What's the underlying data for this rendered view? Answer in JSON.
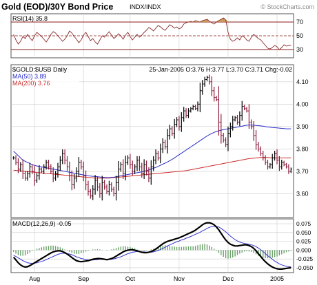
{
  "header": {
    "title": "Gold (EOD)/30Y Bond Price",
    "symbol": "INDX/INDX",
    "copyright": "© StockCharts.com"
  },
  "colors": {
    "frame": "#555555",
    "grid": "#cccccc",
    "rsi_line": "#8b2a2a",
    "rsi_fill": "#c79a5a",
    "rsi_levels": "#8b1a1a",
    "up_bar": "#000000",
    "down_bar": "#8b1a3a",
    "ma50": "#2b2bcc",
    "ma200": "#cc2b2b",
    "macd_line": "#000000",
    "macd_signal": "#3333cc",
    "histogram": "#6aa06a"
  },
  "chart_data": [
    {
      "panel": "rsi",
      "type": "line",
      "title": "RSI(14) 35.8",
      "ylim": [
        20,
        80
      ],
      "overbought": 70,
      "oversold": 30,
      "midline": 50,
      "ticks": [
        "70",
        "50",
        "30"
      ],
      "tick_values": [
        70,
        50,
        30
      ],
      "values": [
        52,
        44,
        38,
        42,
        49,
        46,
        52,
        47,
        43,
        50,
        55,
        52,
        49,
        45,
        41,
        46,
        52,
        56,
        54,
        50,
        46,
        42,
        45,
        50,
        57,
        54,
        49,
        45,
        40,
        44,
        51,
        55,
        49,
        43,
        46,
        41,
        38,
        44,
        50,
        48,
        52,
        56,
        51,
        46,
        49,
        53,
        50,
        45,
        51,
        55,
        49,
        44,
        48,
        52,
        48,
        51,
        55,
        58,
        62,
        60,
        57,
        61,
        65,
        63,
        60,
        58,
        62,
        66,
        64,
        61,
        63,
        60,
        62,
        67,
        69,
        70,
        71,
        70,
        72,
        71,
        70,
        72,
        73,
        74,
        71,
        69,
        67,
        70,
        72,
        74,
        76,
        73,
        55,
        45,
        42,
        44,
        47,
        44,
        50,
        48,
        44,
        42,
        48,
        52,
        49,
        46,
        44,
        40,
        36,
        32,
        31,
        33,
        36,
        34,
        30,
        33,
        37,
        35,
        36,
        35.8
      ]
    },
    {
      "panel": "price",
      "type": "ohlc",
      "legend_title": "$GOLD:$USB Daily",
      "info": "25-Jan-2005 O:3.76 H:3.77 L:3.70 C:3.71 Chg:-0.02",
      "ma50_label": "MA(50) 3.89",
      "ma200_label": "MA(200) 3.76",
      "ylim": [
        3.5,
        4.17
      ],
      "ticks": [
        "4.10",
        "4.00",
        "3.90",
        "3.80",
        "3.70",
        "3.60"
      ],
      "tick_values": [
        4.1,
        4.0,
        3.9,
        3.8,
        3.7,
        3.6
      ],
      "closes": [
        3.76,
        3.74,
        3.71,
        3.73,
        3.69,
        3.67,
        3.69,
        3.72,
        3.7,
        3.66,
        3.68,
        3.71,
        3.7,
        3.72,
        3.74,
        3.72,
        3.7,
        3.67,
        3.69,
        3.72,
        3.75,
        3.78,
        3.75,
        3.72,
        3.68,
        3.64,
        3.67,
        3.7,
        3.74,
        3.72,
        3.68,
        3.64,
        3.61,
        3.59,
        3.62,
        3.66,
        3.63,
        3.6,
        3.65,
        3.63,
        3.61,
        3.64,
        3.62,
        3.6,
        3.65,
        3.71,
        3.73,
        3.69,
        3.74,
        3.76,
        3.73,
        3.7,
        3.72,
        3.75,
        3.72,
        3.69,
        3.73,
        3.7,
        3.67,
        3.72,
        3.75,
        3.78,
        3.76,
        3.8,
        3.83,
        3.81,
        3.86,
        3.89,
        3.87,
        3.91,
        3.93,
        3.9,
        3.94,
        3.97,
        3.95,
        3.97,
        3.98,
        3.99,
        3.98,
        4.0,
        4.06,
        4.09,
        4.11,
        4.12,
        4.1,
        4.06,
        4.03,
        4.02,
        3.92,
        3.86,
        3.84,
        3.82,
        3.87,
        3.9,
        3.93,
        3.94,
        3.92,
        3.95,
        3.99,
        3.98,
        3.97,
        3.92,
        3.9,
        3.86,
        3.82,
        3.8,
        3.78,
        3.76,
        3.74,
        3.72,
        3.73,
        3.76,
        3.78,
        3.75,
        3.72,
        3.74,
        3.73,
        3.72,
        3.7,
        3.71
      ],
      "ma50": [
        3.79,
        3.78,
        3.77,
        3.76,
        3.75,
        3.745,
        3.74,
        3.735,
        3.73,
        3.727,
        3.724,
        3.722,
        3.72,
        3.718,
        3.716,
        3.714,
        3.712,
        3.71,
        3.708,
        3.706,
        3.704,
        3.702,
        3.7,
        3.698,
        3.696,
        3.694,
        3.692,
        3.69,
        3.688,
        3.686,
        3.684,
        3.682,
        3.68,
        3.679,
        3.678,
        3.677,
        3.676,
        3.675,
        3.674,
        3.673,
        3.672,
        3.672,
        3.673,
        3.674,
        3.676,
        3.678,
        3.68,
        3.682,
        3.684,
        3.686,
        3.688,
        3.69,
        3.692,
        3.694,
        3.696,
        3.698,
        3.7,
        3.703,
        3.706,
        3.71,
        3.714,
        3.718,
        3.722,
        3.727,
        3.732,
        3.737,
        3.742,
        3.748,
        3.754,
        3.76,
        3.767,
        3.774,
        3.781,
        3.788,
        3.795,
        3.802,
        3.809,
        3.816,
        3.823,
        3.83,
        3.837,
        3.844,
        3.851,
        3.858,
        3.864,
        3.869,
        3.874,
        3.878,
        3.881,
        3.884,
        3.886,
        3.888,
        3.89,
        3.892,
        3.894,
        3.896,
        3.898,
        3.9,
        3.902,
        3.904,
        3.906,
        3.907,
        3.907,
        3.906,
        3.905,
        3.904,
        3.903,
        3.902,
        3.9,
        3.898,
        3.897,
        3.896,
        3.895,
        3.894,
        3.893,
        3.892,
        3.891,
        3.89,
        3.89,
        3.89
      ],
      "ma200": [
        3.705,
        3.704,
        3.703,
        3.702,
        3.701,
        3.7,
        3.699,
        3.698,
        3.697,
        3.696,
        3.695,
        3.694,
        3.693,
        3.692,
        3.691,
        3.69,
        3.689,
        3.688,
        3.687,
        3.686,
        3.685,
        3.684,
        3.683,
        3.682,
        3.681,
        3.68,
        3.679,
        3.678,
        3.677,
        3.676,
        3.675,
        3.674,
        3.673,
        3.672,
        3.671,
        3.67,
        3.67,
        3.67,
        3.67,
        3.67,
        3.67,
        3.67,
        3.671,
        3.672,
        3.673,
        3.674,
        3.675,
        3.676,
        3.677,
        3.678,
        3.679,
        3.68,
        3.681,
        3.682,
        3.683,
        3.684,
        3.685,
        3.686,
        3.687,
        3.688,
        3.689,
        3.69,
        3.691,
        3.692,
        3.693,
        3.694,
        3.695,
        3.696,
        3.697,
        3.698,
        3.699,
        3.7,
        3.701,
        3.702,
        3.703,
        3.705,
        3.707,
        3.709,
        3.711,
        3.713,
        3.715,
        3.717,
        3.719,
        3.721,
        3.723,
        3.725,
        3.727,
        3.729,
        3.731,
        3.733,
        3.735,
        3.737,
        3.739,
        3.741,
        3.743,
        3.745,
        3.747,
        3.749,
        3.751,
        3.753,
        3.755,
        3.757,
        3.758,
        3.759,
        3.76,
        3.761,
        3.762,
        3.762,
        3.762,
        3.762,
        3.761,
        3.761,
        3.76,
        3.76,
        3.76,
        3.76,
        3.76,
        3.76,
        3.76,
        3.76
      ]
    },
    {
      "panel": "macd",
      "type": "line",
      "title": "MACD(12,26,9) -0.05",
      "ylim": [
        -0.06,
        0.085
      ],
      "ticks": [
        "0.075",
        "0.050",
        "0.025",
        "0.000",
        "-0.025",
        "-0.050"
      ],
      "tick_values": [
        0.075,
        0.05,
        0.025,
        0.0,
        -0.025,
        -0.05
      ],
      "macd": [
        -0.02,
        -0.028,
        -0.036,
        -0.042,
        -0.046,
        -0.048,
        -0.047,
        -0.044,
        -0.04,
        -0.036,
        -0.032,
        -0.028,
        -0.024,
        -0.02,
        -0.016,
        -0.012,
        -0.008,
        -0.005,
        -0.003,
        -0.002,
        -0.002,
        -0.004,
        -0.007,
        -0.011,
        -0.016,
        -0.021,
        -0.026,
        -0.03,
        -0.032,
        -0.033,
        -0.032,
        -0.031,
        -0.03,
        -0.028,
        -0.026,
        -0.025,
        -0.024,
        -0.024,
        -0.025,
        -0.026,
        -0.027,
        -0.026,
        -0.024,
        -0.021,
        -0.017,
        -0.013,
        -0.009,
        -0.005,
        -0.002,
        0.0,
        0.001,
        0.001,
        0.0,
        -0.002,
        -0.004,
        -0.006,
        -0.007,
        -0.007,
        -0.006,
        -0.004,
        -0.001,
        0.003,
        0.008,
        0.013,
        0.018,
        0.022,
        0.025,
        0.027,
        0.029,
        0.031,
        0.033,
        0.035,
        0.038,
        0.041,
        0.044,
        0.047,
        0.05,
        0.053,
        0.057,
        0.062,
        0.067,
        0.072,
        0.076,
        0.078,
        0.078,
        0.076,
        0.072,
        0.066,
        0.058,
        0.048,
        0.038,
        0.029,
        0.022,
        0.017,
        0.014,
        0.012,
        0.012,
        0.013,
        0.014,
        0.015,
        0.015,
        0.013,
        0.01,
        0.005,
        -0.002,
        -0.01,
        -0.018,
        -0.026,
        -0.033,
        -0.039,
        -0.044,
        -0.048,
        -0.051,
        -0.053,
        -0.054,
        -0.054,
        -0.053,
        -0.052,
        -0.051,
        -0.05
      ],
      "signal": [
        -0.015,
        -0.018,
        -0.022,
        -0.026,
        -0.03,
        -0.033,
        -0.036,
        -0.037,
        -0.038,
        -0.037,
        -0.036,
        -0.034,
        -0.032,
        -0.03,
        -0.027,
        -0.024,
        -0.021,
        -0.018,
        -0.015,
        -0.012,
        -0.01,
        -0.009,
        -0.009,
        -0.01,
        -0.011,
        -0.013,
        -0.016,
        -0.019,
        -0.021,
        -0.024,
        -0.025,
        -0.027,
        -0.028,
        -0.028,
        -0.028,
        -0.027,
        -0.027,
        -0.026,
        -0.026,
        -0.026,
        -0.026,
        -0.026,
        -0.026,
        -0.025,
        -0.023,
        -0.021,
        -0.019,
        -0.016,
        -0.013,
        -0.01,
        -0.008,
        -0.006,
        -0.005,
        -0.004,
        -0.004,
        -0.005,
        -0.005,
        -0.006,
        -0.006,
        -0.006,
        -0.005,
        -0.003,
        -0.001,
        0.002,
        0.005,
        0.008,
        0.012,
        0.015,
        0.018,
        0.021,
        0.024,
        0.026,
        0.029,
        0.031,
        0.034,
        0.036,
        0.039,
        0.042,
        0.045,
        0.048,
        0.051,
        0.055,
        0.058,
        0.062,
        0.065,
        0.067,
        0.068,
        0.068,
        0.066,
        0.062,
        0.057,
        0.052,
        0.046,
        0.04,
        0.035,
        0.03,
        0.026,
        0.023,
        0.021,
        0.019,
        0.018,
        0.017,
        0.015,
        0.013,
        0.01,
        0.006,
        0.001,
        -0.004,
        -0.01,
        -0.016,
        -0.021,
        -0.026,
        -0.031,
        -0.035,
        -0.039,
        -0.042,
        -0.044,
        -0.046,
        -0.047,
        -0.048
      ]
    }
  ],
  "x_axis": {
    "months": [
      "Aug",
      "Sep",
      "Oct",
      "Nov",
      "Dec",
      "2005"
    ],
    "month_bar_index": [
      9,
      30,
      50,
      71,
      92,
      113
    ]
  }
}
